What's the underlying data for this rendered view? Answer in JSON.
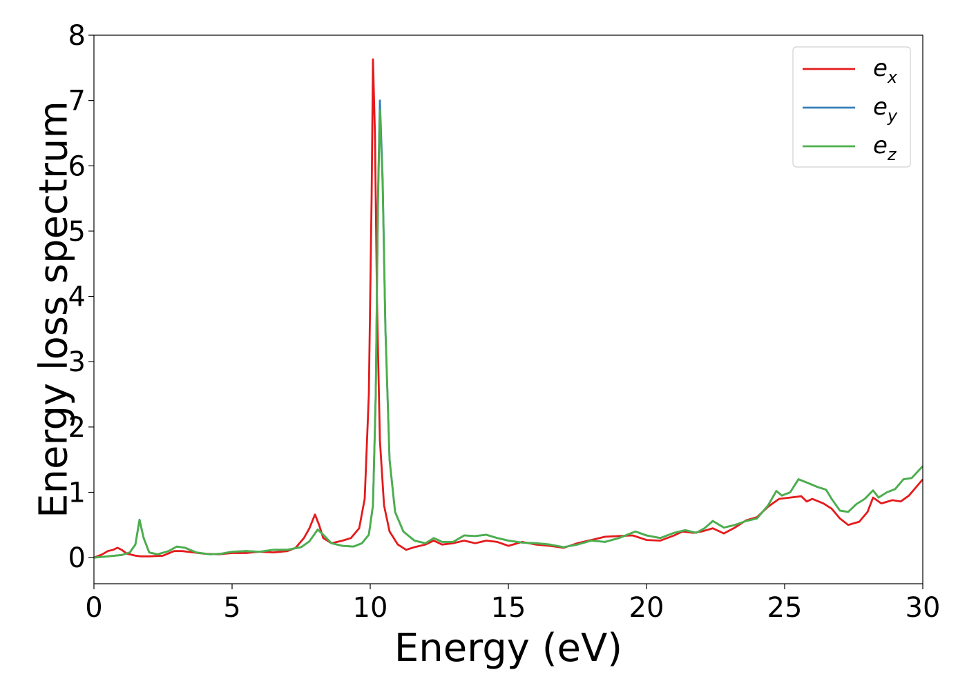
{
  "chart_data": {
    "type": "line",
    "title": "",
    "xlabel": "Energy (eV)",
    "ylabel": "Energy loss spectrum",
    "xlim": [
      0,
      30
    ],
    "ylim": [
      -0.4,
      8
    ],
    "xticks": [
      0,
      5,
      10,
      15,
      20,
      25,
      30
    ],
    "yticks": [
      0,
      1,
      2,
      3,
      4,
      5,
      6,
      7,
      8
    ],
    "grid": false,
    "legend_position": "top-right",
    "series": [
      {
        "name": "e_x",
        "label_main": "e",
        "label_sub": "x",
        "color": "#e41a1c",
        "points": [
          [
            0,
            0.0
          ],
          [
            0.3,
            0.05
          ],
          [
            0.5,
            0.1
          ],
          [
            0.7,
            0.12
          ],
          [
            0.85,
            0.15
          ],
          [
            1.0,
            0.12
          ],
          [
            1.2,
            0.06
          ],
          [
            1.5,
            0.03
          ],
          [
            1.7,
            0.02
          ],
          [
            2.0,
            0.02
          ],
          [
            2.5,
            0.03
          ],
          [
            2.9,
            0.1
          ],
          [
            3.2,
            0.1
          ],
          [
            3.6,
            0.08
          ],
          [
            4.0,
            0.06
          ],
          [
            4.5,
            0.05
          ],
          [
            5.0,
            0.07
          ],
          [
            5.5,
            0.07
          ],
          [
            6.0,
            0.09
          ],
          [
            6.5,
            0.08
          ],
          [
            7.0,
            0.1
          ],
          [
            7.3,
            0.15
          ],
          [
            7.6,
            0.3
          ],
          [
            7.8,
            0.45
          ],
          [
            8.0,
            0.66
          ],
          [
            8.15,
            0.5
          ],
          [
            8.3,
            0.3
          ],
          [
            8.6,
            0.22
          ],
          [
            9.0,
            0.26
          ],
          [
            9.3,
            0.3
          ],
          [
            9.6,
            0.45
          ],
          [
            9.8,
            0.9
          ],
          [
            9.95,
            2.5
          ],
          [
            10.05,
            5.5
          ],
          [
            10.1,
            7.63
          ],
          [
            10.17,
            6.5
          ],
          [
            10.25,
            3.8
          ],
          [
            10.35,
            1.8
          ],
          [
            10.5,
            0.8
          ],
          [
            10.7,
            0.4
          ],
          [
            11.0,
            0.2
          ],
          [
            11.3,
            0.12
          ],
          [
            11.6,
            0.16
          ],
          [
            12.0,
            0.2
          ],
          [
            12.3,
            0.26
          ],
          [
            12.6,
            0.2
          ],
          [
            13.0,
            0.22
          ],
          [
            13.4,
            0.26
          ],
          [
            13.8,
            0.22
          ],
          [
            14.2,
            0.26
          ],
          [
            14.6,
            0.24
          ],
          [
            15.0,
            0.18
          ],
          [
            15.5,
            0.24
          ],
          [
            16.0,
            0.2
          ],
          [
            16.5,
            0.18
          ],
          [
            17.0,
            0.15
          ],
          [
            17.5,
            0.22
          ],
          [
            18.0,
            0.27
          ],
          [
            18.5,
            0.32
          ],
          [
            19.0,
            0.33
          ],
          [
            19.5,
            0.34
          ],
          [
            20.0,
            0.27
          ],
          [
            20.5,
            0.26
          ],
          [
            21.0,
            0.34
          ],
          [
            21.3,
            0.4
          ],
          [
            21.7,
            0.38
          ],
          [
            22.0,
            0.4
          ],
          [
            22.4,
            0.45
          ],
          [
            22.8,
            0.37
          ],
          [
            23.2,
            0.46
          ],
          [
            23.6,
            0.57
          ],
          [
            24.0,
            0.62
          ],
          [
            24.4,
            0.78
          ],
          [
            24.8,
            0.9
          ],
          [
            25.2,
            0.92
          ],
          [
            25.6,
            0.94
          ],
          [
            25.8,
            0.86
          ],
          [
            26.0,
            0.9
          ],
          [
            26.4,
            0.83
          ],
          [
            26.7,
            0.75
          ],
          [
            27.0,
            0.6
          ],
          [
            27.3,
            0.5
          ],
          [
            27.7,
            0.55
          ],
          [
            28.0,
            0.7
          ],
          [
            28.2,
            0.92
          ],
          [
            28.5,
            0.83
          ],
          [
            28.9,
            0.88
          ],
          [
            29.2,
            0.86
          ],
          [
            29.5,
            0.95
          ],
          [
            30.0,
            1.2
          ]
        ]
      },
      {
        "name": "e_y",
        "label_main": "e",
        "label_sub": "y",
        "color": "#377eb8",
        "points": [
          [
            0,
            0.0
          ],
          [
            0.5,
            0.02
          ],
          [
            1.0,
            0.04
          ],
          [
            1.3,
            0.08
          ],
          [
            1.5,
            0.2
          ],
          [
            1.65,
            0.58
          ],
          [
            1.8,
            0.3
          ],
          [
            2.0,
            0.08
          ],
          [
            2.3,
            0.05
          ],
          [
            2.7,
            0.1
          ],
          [
            3.0,
            0.17
          ],
          [
            3.3,
            0.15
          ],
          [
            3.7,
            0.08
          ],
          [
            4.2,
            0.05
          ],
          [
            4.6,
            0.06
          ],
          [
            5.0,
            0.09
          ],
          [
            5.5,
            0.1
          ],
          [
            6.0,
            0.09
          ],
          [
            6.5,
            0.12
          ],
          [
            7.0,
            0.12
          ],
          [
            7.5,
            0.16
          ],
          [
            7.8,
            0.25
          ],
          [
            8.1,
            0.43
          ],
          [
            8.3,
            0.35
          ],
          [
            8.6,
            0.22
          ],
          [
            9.0,
            0.18
          ],
          [
            9.4,
            0.17
          ],
          [
            9.7,
            0.22
          ],
          [
            9.95,
            0.35
          ],
          [
            10.1,
            0.8
          ],
          [
            10.2,
            2.5
          ],
          [
            10.28,
            5.5
          ],
          [
            10.35,
            7.0
          ],
          [
            10.45,
            5.8
          ],
          [
            10.55,
            3.5
          ],
          [
            10.7,
            1.5
          ],
          [
            10.9,
            0.7
          ],
          [
            11.2,
            0.4
          ],
          [
            11.6,
            0.26
          ],
          [
            12.0,
            0.22
          ],
          [
            12.3,
            0.3
          ],
          [
            12.6,
            0.24
          ],
          [
            13.0,
            0.24
          ],
          [
            13.4,
            0.34
          ],
          [
            13.8,
            0.33
          ],
          [
            14.2,
            0.35
          ],
          [
            14.6,
            0.3
          ],
          [
            15.0,
            0.26
          ],
          [
            15.5,
            0.23
          ],
          [
            16.0,
            0.22
          ],
          [
            16.5,
            0.2
          ],
          [
            17.0,
            0.16
          ],
          [
            17.5,
            0.2
          ],
          [
            18.0,
            0.26
          ],
          [
            18.5,
            0.24
          ],
          [
            19.0,
            0.3
          ],
          [
            19.6,
            0.4
          ],
          [
            20.0,
            0.34
          ],
          [
            20.5,
            0.3
          ],
          [
            21.0,
            0.38
          ],
          [
            21.4,
            0.42
          ],
          [
            21.8,
            0.38
          ],
          [
            22.1,
            0.45
          ],
          [
            22.4,
            0.56
          ],
          [
            22.8,
            0.46
          ],
          [
            23.2,
            0.5
          ],
          [
            23.6,
            0.56
          ],
          [
            24.0,
            0.6
          ],
          [
            24.4,
            0.8
          ],
          [
            24.7,
            1.02
          ],
          [
            24.9,
            0.95
          ],
          [
            25.2,
            1.0
          ],
          [
            25.5,
            1.2
          ],
          [
            25.8,
            1.15
          ],
          [
            26.2,
            1.08
          ],
          [
            26.5,
            1.04
          ],
          [
            26.7,
            0.9
          ],
          [
            27.0,
            0.72
          ],
          [
            27.3,
            0.7
          ],
          [
            27.6,
            0.82
          ],
          [
            27.9,
            0.9
          ],
          [
            28.2,
            1.03
          ],
          [
            28.4,
            0.92
          ],
          [
            28.7,
            1.0
          ],
          [
            29.0,
            1.05
          ],
          [
            29.3,
            1.2
          ],
          [
            29.6,
            1.22
          ],
          [
            30.0,
            1.4
          ]
        ]
      },
      {
        "name": "e_z",
        "label_main": "e",
        "label_sub": "z",
        "color": "#4daf4a",
        "points": [
          [
            0,
            0.0
          ],
          [
            0.5,
            0.02
          ],
          [
            1.0,
            0.04
          ],
          [
            1.3,
            0.08
          ],
          [
            1.5,
            0.2
          ],
          [
            1.65,
            0.58
          ],
          [
            1.8,
            0.3
          ],
          [
            2.0,
            0.08
          ],
          [
            2.3,
            0.05
          ],
          [
            2.7,
            0.1
          ],
          [
            3.0,
            0.17
          ],
          [
            3.3,
            0.15
          ],
          [
            3.7,
            0.08
          ],
          [
            4.2,
            0.05
          ],
          [
            4.6,
            0.06
          ],
          [
            5.0,
            0.09
          ],
          [
            5.5,
            0.1
          ],
          [
            6.0,
            0.09
          ],
          [
            6.5,
            0.12
          ],
          [
            7.0,
            0.12
          ],
          [
            7.5,
            0.16
          ],
          [
            7.8,
            0.25
          ],
          [
            8.1,
            0.43
          ],
          [
            8.3,
            0.35
          ],
          [
            8.6,
            0.22
          ],
          [
            9.0,
            0.18
          ],
          [
            9.4,
            0.17
          ],
          [
            9.7,
            0.22
          ],
          [
            9.95,
            0.35
          ],
          [
            10.1,
            0.8
          ],
          [
            10.2,
            2.5
          ],
          [
            10.28,
            5.4
          ],
          [
            10.35,
            6.85
          ],
          [
            10.45,
            5.7
          ],
          [
            10.55,
            3.5
          ],
          [
            10.7,
            1.5
          ],
          [
            10.9,
            0.7
          ],
          [
            11.2,
            0.4
          ],
          [
            11.6,
            0.26
          ],
          [
            12.0,
            0.22
          ],
          [
            12.3,
            0.3
          ],
          [
            12.6,
            0.24
          ],
          [
            13.0,
            0.24
          ],
          [
            13.4,
            0.34
          ],
          [
            13.8,
            0.33
          ],
          [
            14.2,
            0.35
          ],
          [
            14.6,
            0.3
          ],
          [
            15.0,
            0.26
          ],
          [
            15.5,
            0.23
          ],
          [
            16.0,
            0.22
          ],
          [
            16.5,
            0.2
          ],
          [
            17.0,
            0.16
          ],
          [
            17.5,
            0.2
          ],
          [
            18.0,
            0.26
          ],
          [
            18.5,
            0.24
          ],
          [
            19.0,
            0.3
          ],
          [
            19.6,
            0.4
          ],
          [
            20.0,
            0.34
          ],
          [
            20.5,
            0.3
          ],
          [
            21.0,
            0.38
          ],
          [
            21.4,
            0.42
          ],
          [
            21.8,
            0.38
          ],
          [
            22.1,
            0.45
          ],
          [
            22.4,
            0.56
          ],
          [
            22.8,
            0.46
          ],
          [
            23.2,
            0.5
          ],
          [
            23.6,
            0.56
          ],
          [
            24.0,
            0.6
          ],
          [
            24.4,
            0.8
          ],
          [
            24.7,
            1.02
          ],
          [
            24.9,
            0.95
          ],
          [
            25.2,
            1.0
          ],
          [
            25.5,
            1.2
          ],
          [
            25.8,
            1.15
          ],
          [
            26.2,
            1.08
          ],
          [
            26.5,
            1.04
          ],
          [
            26.7,
            0.9
          ],
          [
            27.0,
            0.72
          ],
          [
            27.3,
            0.7
          ],
          [
            27.6,
            0.82
          ],
          [
            27.9,
            0.9
          ],
          [
            28.2,
            1.03
          ],
          [
            28.4,
            0.92
          ],
          [
            28.7,
            1.0
          ],
          [
            29.0,
            1.05
          ],
          [
            29.3,
            1.2
          ],
          [
            29.6,
            1.22
          ],
          [
            30.0,
            1.4
          ]
        ]
      }
    ]
  }
}
